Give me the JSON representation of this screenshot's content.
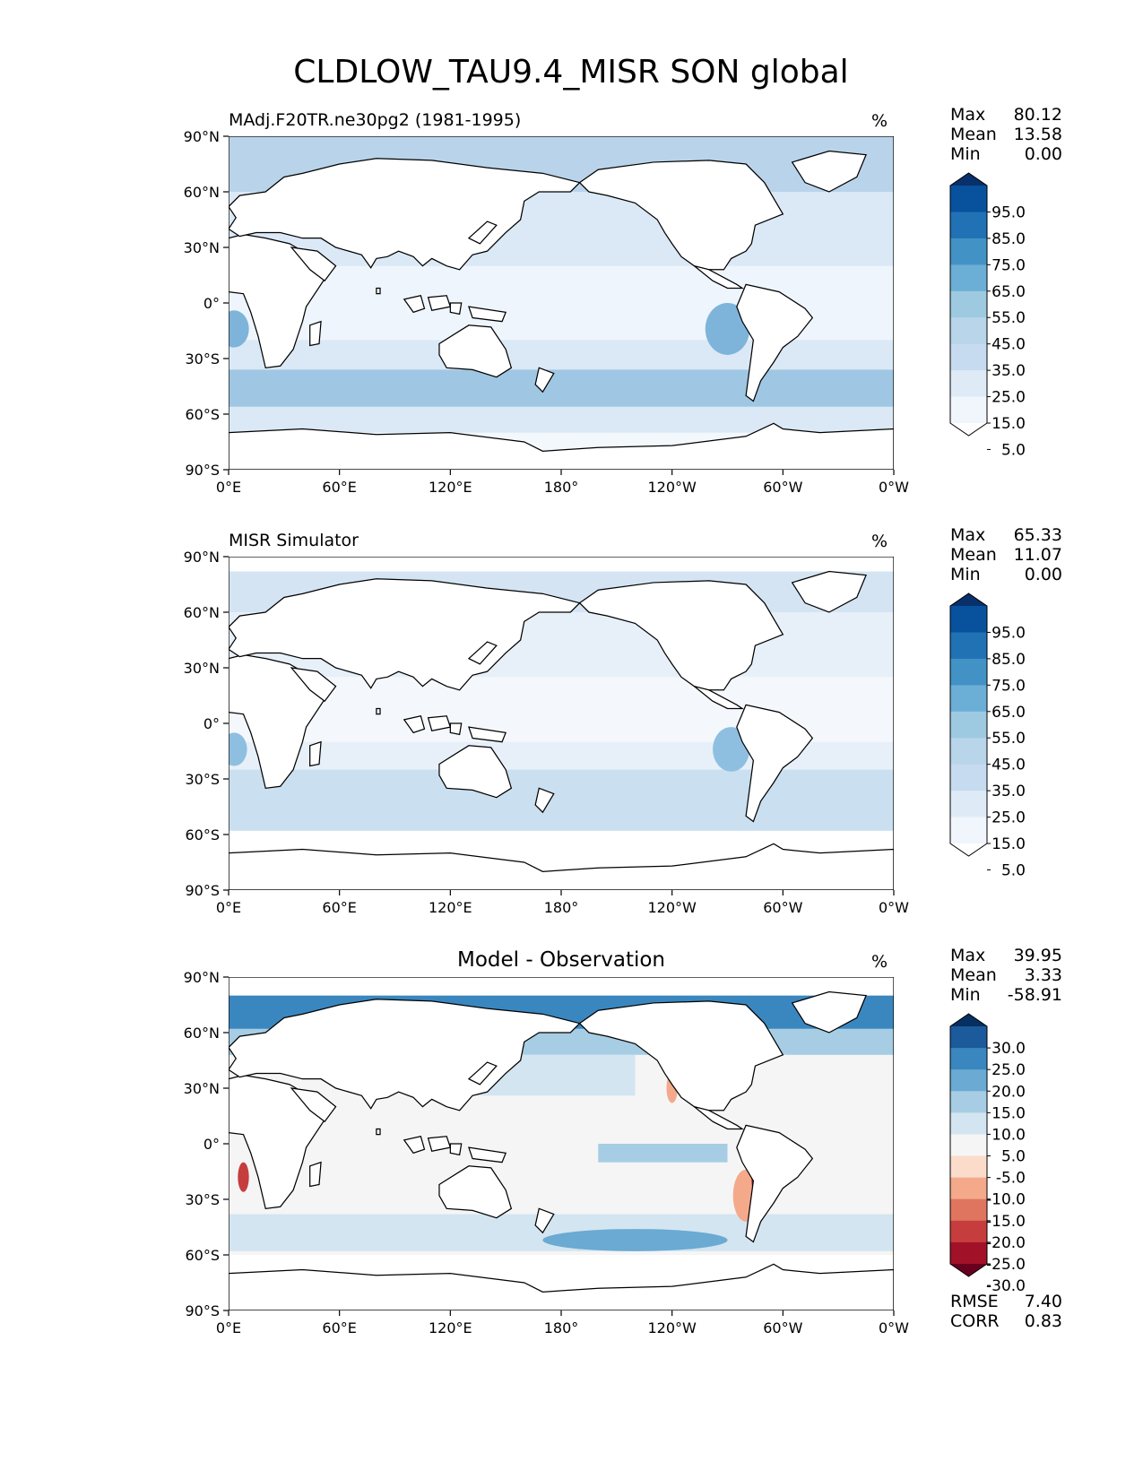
{
  "figure": {
    "title": "CLDLOW_TAU9.4_MISR SON global",
    "units_label": "%",
    "lat_ticks": [
      "90°N",
      "60°N",
      "30°N",
      "0°",
      "30°S",
      "60°S",
      "90°S"
    ],
    "lon_ticks": [
      "0°E",
      "60°E",
      "120°E",
      "180°",
      "120°W",
      "60°W",
      "0°W"
    ]
  },
  "panels": [
    {
      "id": "model",
      "left_title": "MAdj.F20TR.ne30pg2 (1981-1995)",
      "center_title": "",
      "stats": [
        {
          "label": "Max",
          "value": "80.12"
        },
        {
          "label": "Mean",
          "value": "13.58"
        },
        {
          "label": "Min",
          "value": "0.00"
        }
      ],
      "extra_stats": [],
      "colorbar": {
        "labels": [
          "95.0",
          "85.0",
          "75.0",
          "65.0",
          "55.0",
          "45.0",
          "35.0",
          "25.0",
          "15.0",
          "5.0"
        ],
        "colors": [
          "#08306b",
          "#08519c",
          "#2171b5",
          "#4292c6",
          "#6baed6",
          "#9ecae1",
          "#b8d5ea",
          "#c6dbef",
          "#deebf7",
          "#f0f6fc",
          "#ffffff"
        ]
      }
    },
    {
      "id": "obs",
      "left_title": "MISR Simulator",
      "center_title": "",
      "stats": [
        {
          "label": "Max",
          "value": "65.33"
        },
        {
          "label": "Mean",
          "value": "11.07"
        },
        {
          "label": "Min",
          "value": "0.00"
        }
      ],
      "extra_stats": [],
      "colorbar": {
        "labels": [
          "95.0",
          "85.0",
          "75.0",
          "65.0",
          "55.0",
          "45.0",
          "35.0",
          "25.0",
          "15.0",
          "5.0"
        ],
        "colors": [
          "#08306b",
          "#08519c",
          "#2171b5",
          "#4292c6",
          "#6baed6",
          "#9ecae1",
          "#b8d5ea",
          "#c6dbef",
          "#deebf7",
          "#f0f6fc",
          "#ffffff"
        ]
      }
    },
    {
      "id": "diff",
      "left_title": "",
      "center_title": "Model - Observation",
      "stats": [
        {
          "label": "Max",
          "value": "39.95"
        },
        {
          "label": "Mean",
          "value": "3.33"
        },
        {
          "label": "Min",
          "value": "-58.91"
        }
      ],
      "extra_stats": [
        {
          "label": "RMSE",
          "value": "7.40"
        },
        {
          "label": "CORR",
          "value": "0.83"
        }
      ],
      "colorbar": {
        "labels": [
          "30.0",
          "25.0",
          "20.0",
          "15.0",
          "10.0",
          "5.0",
          "-5.0",
          "-10.0",
          "-15.0",
          "-20.0",
          "-25.0",
          "-30.0"
        ],
        "colors": [
          "#053061",
          "#1b5a9b",
          "#3a87c0",
          "#6aaad3",
          "#a6cde3",
          "#d3e5f0",
          "#f5f5f5",
          "#fbdccb",
          "#f4a98b",
          "#e0755f",
          "#c53e3d",
          "#a11228",
          "#67001f"
        ]
      }
    }
  ],
  "colors": {
    "land": "#ffffff",
    "coast": "#000000",
    "obs_polar_mask": "#ffffff",
    "diff_neutral": "#f5f5f5"
  }
}
